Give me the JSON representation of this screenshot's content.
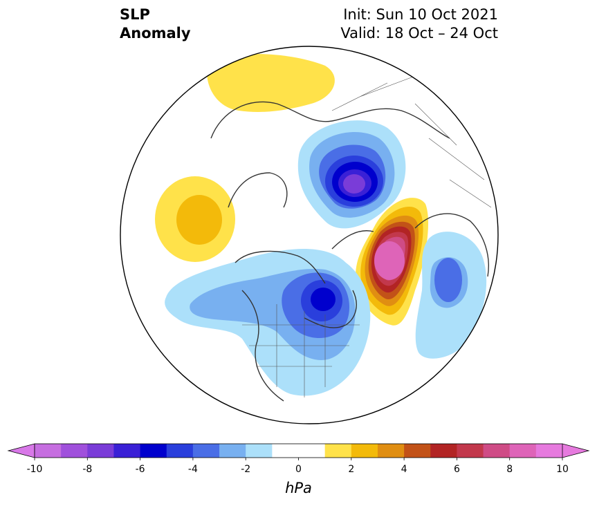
{
  "title": {
    "line1": "SLP",
    "line2": "Anomaly",
    "init": "Init: Sun 10 Oct 2021",
    "valid": "Valid: 18 Oct – 24 Oct"
  },
  "colorbar": {
    "unit": "hPa",
    "ticks": [
      "-10",
      "-8",
      "-6",
      "-4",
      "-2",
      "0",
      "2",
      "4",
      "6",
      "8",
      "10"
    ],
    "bins": [
      {
        "from": -10,
        "to": -9,
        "color": "#c66ee0"
      },
      {
        "from": -9,
        "to": -8,
        "color": "#a050dc"
      },
      {
        "from": -8,
        "to": -7,
        "color": "#7a3cd8"
      },
      {
        "from": -7,
        "to": -6,
        "color": "#3a20d6"
      },
      {
        "from": -6,
        "to": -5,
        "color": "#0000cd"
      },
      {
        "from": -5,
        "to": -4,
        "color": "#2a3fdc"
      },
      {
        "from": -4,
        "to": -3,
        "color": "#4a6ee6"
      },
      {
        "from": -3,
        "to": -2,
        "color": "#78b0f0"
      },
      {
        "from": -2,
        "to": -1,
        "color": "#ace0fa"
      },
      {
        "from": -1,
        "to": 0,
        "color": "#ffffff"
      },
      {
        "from": 0,
        "to": 1,
        "color": "#ffffff"
      },
      {
        "from": 1,
        "to": 2,
        "color": "#ffe24a"
      },
      {
        "from": 2,
        "to": 3,
        "color": "#f3ba0a"
      },
      {
        "from": 3,
        "to": 4,
        "color": "#e08e12"
      },
      {
        "from": 4,
        "to": 5,
        "color": "#c25218"
      },
      {
        "from": 5,
        "to": 6,
        "color": "#b22424"
      },
      {
        "from": 6,
        "to": 7,
        "color": "#c2384c"
      },
      {
        "from": 7,
        "to": 8,
        "color": "#cf4c86"
      },
      {
        "from": 8,
        "to": 9,
        "color": "#de64b8"
      },
      {
        "from": 9,
        "to": 10,
        "color": "#e67ade"
      }
    ],
    "under_color": "#d878e8",
    "over_color": "#e67ade"
  },
  "map": {
    "projection": "north-polar-stereographic",
    "field": "SLP anomaly",
    "features": [
      {
        "name": "low-east-siberia-arctic",
        "sign": "negative",
        "peak": -9
      },
      {
        "name": "low-hudson-bay-canada",
        "sign": "negative",
        "peak": -6
      },
      {
        "name": "low-north-pacific-gulf-alaska",
        "sign": "negative",
        "peak": -3
      },
      {
        "name": "low-eastern-europe",
        "sign": "negative",
        "peak": -4
      },
      {
        "name": "high-greenland-north-atlantic",
        "sign": "positive",
        "peak": 10
      },
      {
        "name": "high-western-pacific-japan",
        "sign": "positive",
        "peak": 2
      },
      {
        "name": "high-arctic-north-central-asia",
        "sign": "positive",
        "peak": 1
      }
    ]
  }
}
